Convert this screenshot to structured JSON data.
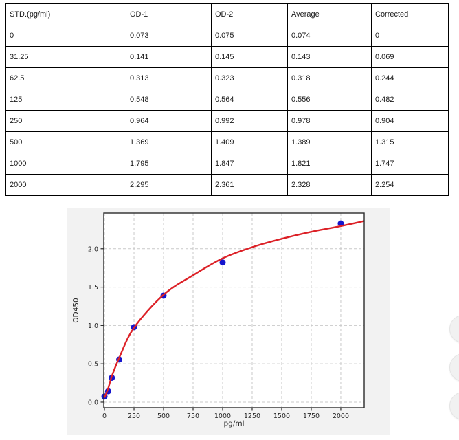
{
  "table": {
    "columns": [
      "STD.(pg/ml)",
      "OD-1",
      "OD-2",
      "Average",
      "Corrected"
    ],
    "rows": [
      [
        "0",
        "0.073",
        "0.075",
        "0.074",
        "0"
      ],
      [
        "31.25",
        "0.141",
        "0.145",
        "0.143",
        "0.069"
      ],
      [
        "62.5",
        "0.313",
        "0.323",
        "0.318",
        "0.244"
      ],
      [
        "125",
        "0.548",
        "0.564",
        "0.556",
        "0.482"
      ],
      [
        "250",
        "0.964",
        "0.992",
        "0.978",
        "0.904"
      ],
      [
        "500",
        "1.369",
        "1.409",
        "1.389",
        "1.315"
      ],
      [
        "1000",
        "1.795",
        "1.847",
        "1.821",
        "1.747"
      ],
      [
        "2000",
        "2.295",
        "2.361",
        "2.328",
        "2.254"
      ]
    ]
  },
  "chart_data": {
    "type": "scatter",
    "title": "",
    "xlabel": "pg/ml",
    "ylabel": "OD450",
    "x_ticks": [
      0,
      250,
      500,
      750,
      1000,
      1250,
      1500,
      1750,
      2000
    ],
    "y_ticks": [
      "0.0",
      "0.5",
      "1.0",
      "1.5",
      "2.0"
    ],
    "xlim": [
      -6,
      2198
    ],
    "ylim": [
      -0.072,
      2.464
    ],
    "grid": true,
    "legend": "none",
    "points": {
      "x": [
        0,
        31.25,
        62.5,
        125,
        250,
        500,
        1000,
        2000
      ],
      "y": [
        0.074,
        0.143,
        0.318,
        0.556,
        0.978,
        1.389,
        1.821,
        2.328
      ]
    },
    "fit_curve": {
      "x": [
        0,
        31.25,
        62.5,
        125,
        250,
        500,
        750,
        1000,
        1250,
        1500,
        1750,
        2000,
        2198
      ],
      "y": [
        0.06,
        0.18,
        0.34,
        0.58,
        0.97,
        1.4,
        1.655,
        1.875,
        2.02,
        2.13,
        2.22,
        2.295,
        2.36
      ]
    },
    "colors": {
      "curve": "#dc2127",
      "marker": "#1515cd",
      "grid": "#c9c9c9",
      "spine": "#2b2b2b",
      "tick_text": "#262626",
      "figure_bg": "#f2f2f2",
      "axes_bg": "#ffffff"
    }
  },
  "side_buttons": {
    "count": 3,
    "color": "#f1f1f1"
  }
}
